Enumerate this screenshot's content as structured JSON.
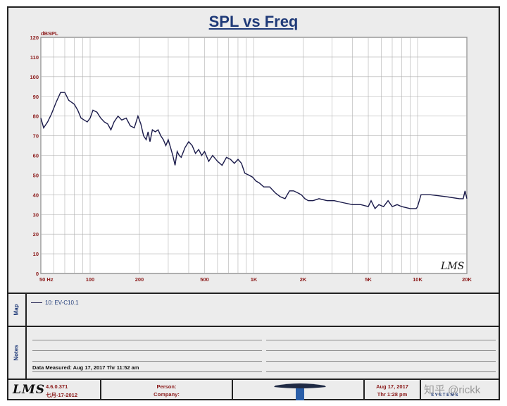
{
  "chart_data": {
    "type": "line",
    "title": "SPL vs Freq",
    "ylabel": "dBSPL",
    "xscale": "log",
    "xlim": [
      50,
      20000
    ],
    "ylim": [
      0,
      120
    ],
    "yticks": [
      0,
      10,
      20,
      30,
      40,
      50,
      60,
      70,
      80,
      90,
      100,
      110,
      120
    ],
    "xticks": [
      {
        "v": 50,
        "label": "50  Hz"
      },
      {
        "v": 100,
        "label": "100"
      },
      {
        "v": 200,
        "label": "200"
      },
      {
        "v": 500,
        "label": "500"
      },
      {
        "v": 1000,
        "label": "1K"
      },
      {
        "v": 2000,
        "label": "2K"
      },
      {
        "v": 5000,
        "label": "5K"
      },
      {
        "v": 10000,
        "label": "10K"
      },
      {
        "v": 20000,
        "label": "20K"
      }
    ],
    "grid": true,
    "series": [
      {
        "name": "10: EV-C10.1",
        "color": "#1a1a4a",
        "x": [
          50,
          52,
          55,
          58,
          62,
          66,
          70,
          74,
          77,
          80,
          84,
          88,
          92,
          96,
          100,
          104,
          110,
          116,
          122,
          128,
          134,
          140,
          148,
          156,
          166,
          176,
          186,
          196,
          204,
          212,
          220,
          226,
          232,
          240,
          250,
          260,
          270,
          280,
          290,
          300,
          310,
          320,
          330,
          340,
          350,
          360,
          380,
          400,
          420,
          440,
          460,
          480,
          500,
          530,
          560,
          600,
          640,
          680,
          720,
          760,
          800,
          840,
          880,
          930,
          980,
          1030,
          1080,
          1150,
          1250,
          1350,
          1450,
          1550,
          1650,
          1750,
          1850,
          1950,
          2050,
          2150,
          2300,
          2500,
          2800,
          3100,
          3500,
          4000,
          4500,
          5000,
          5200,
          5500,
          5800,
          6200,
          6600,
          7000,
          7500,
          8000,
          9000,
          9500,
          9800,
          10000,
          10500,
          12000,
          15000,
          18000,
          19000,
          19500,
          20000
        ],
        "y": [
          79,
          74,
          77,
          81,
          87,
          92,
          92,
          88,
          87,
          86,
          83,
          79,
          78,
          77,
          79,
          83,
          82,
          79,
          77,
          76,
          73,
          77,
          80,
          78,
          79,
          75,
          74,
          80,
          76,
          70,
          68,
          72,
          67,
          73,
          72,
          73,
          70,
          68,
          65,
          68,
          64,
          60,
          55,
          62,
          60,
          59,
          64,
          67,
          65,
          61,
          63,
          60,
          62,
          57,
          60,
          57,
          55,
          59,
          58,
          56,
          58,
          56,
          51,
          50,
          49,
          47,
          46,
          44,
          44,
          41,
          39,
          38,
          42,
          42,
          41,
          40,
          38,
          37,
          37,
          38,
          37,
          37,
          36,
          35,
          35,
          34,
          37,
          33,
          35,
          34,
          37,
          34,
          35,
          34,
          33,
          33,
          33,
          34,
          40,
          40,
          39,
          38,
          38,
          42,
          38
        ]
      }
    ]
  },
  "map": {
    "label": "Map",
    "entry": "10: EV-C10.1"
  },
  "notes": {
    "label": "Notes",
    "measured": "Data Measured: Aug 17, 2017  Thr 11:52 am"
  },
  "footer": {
    "logo": "LMS",
    "version": "4.6.0.371",
    "date_local": "七月-17-2012",
    "person_label": "Person:",
    "company_label": "Company:",
    "date": "Aug 17, 2017",
    "time": "Thr  1:28 pm",
    "systems": "S Y S T E M S",
    "watermark": "知乎 @rickk"
  },
  "plot_logo": "LMS"
}
